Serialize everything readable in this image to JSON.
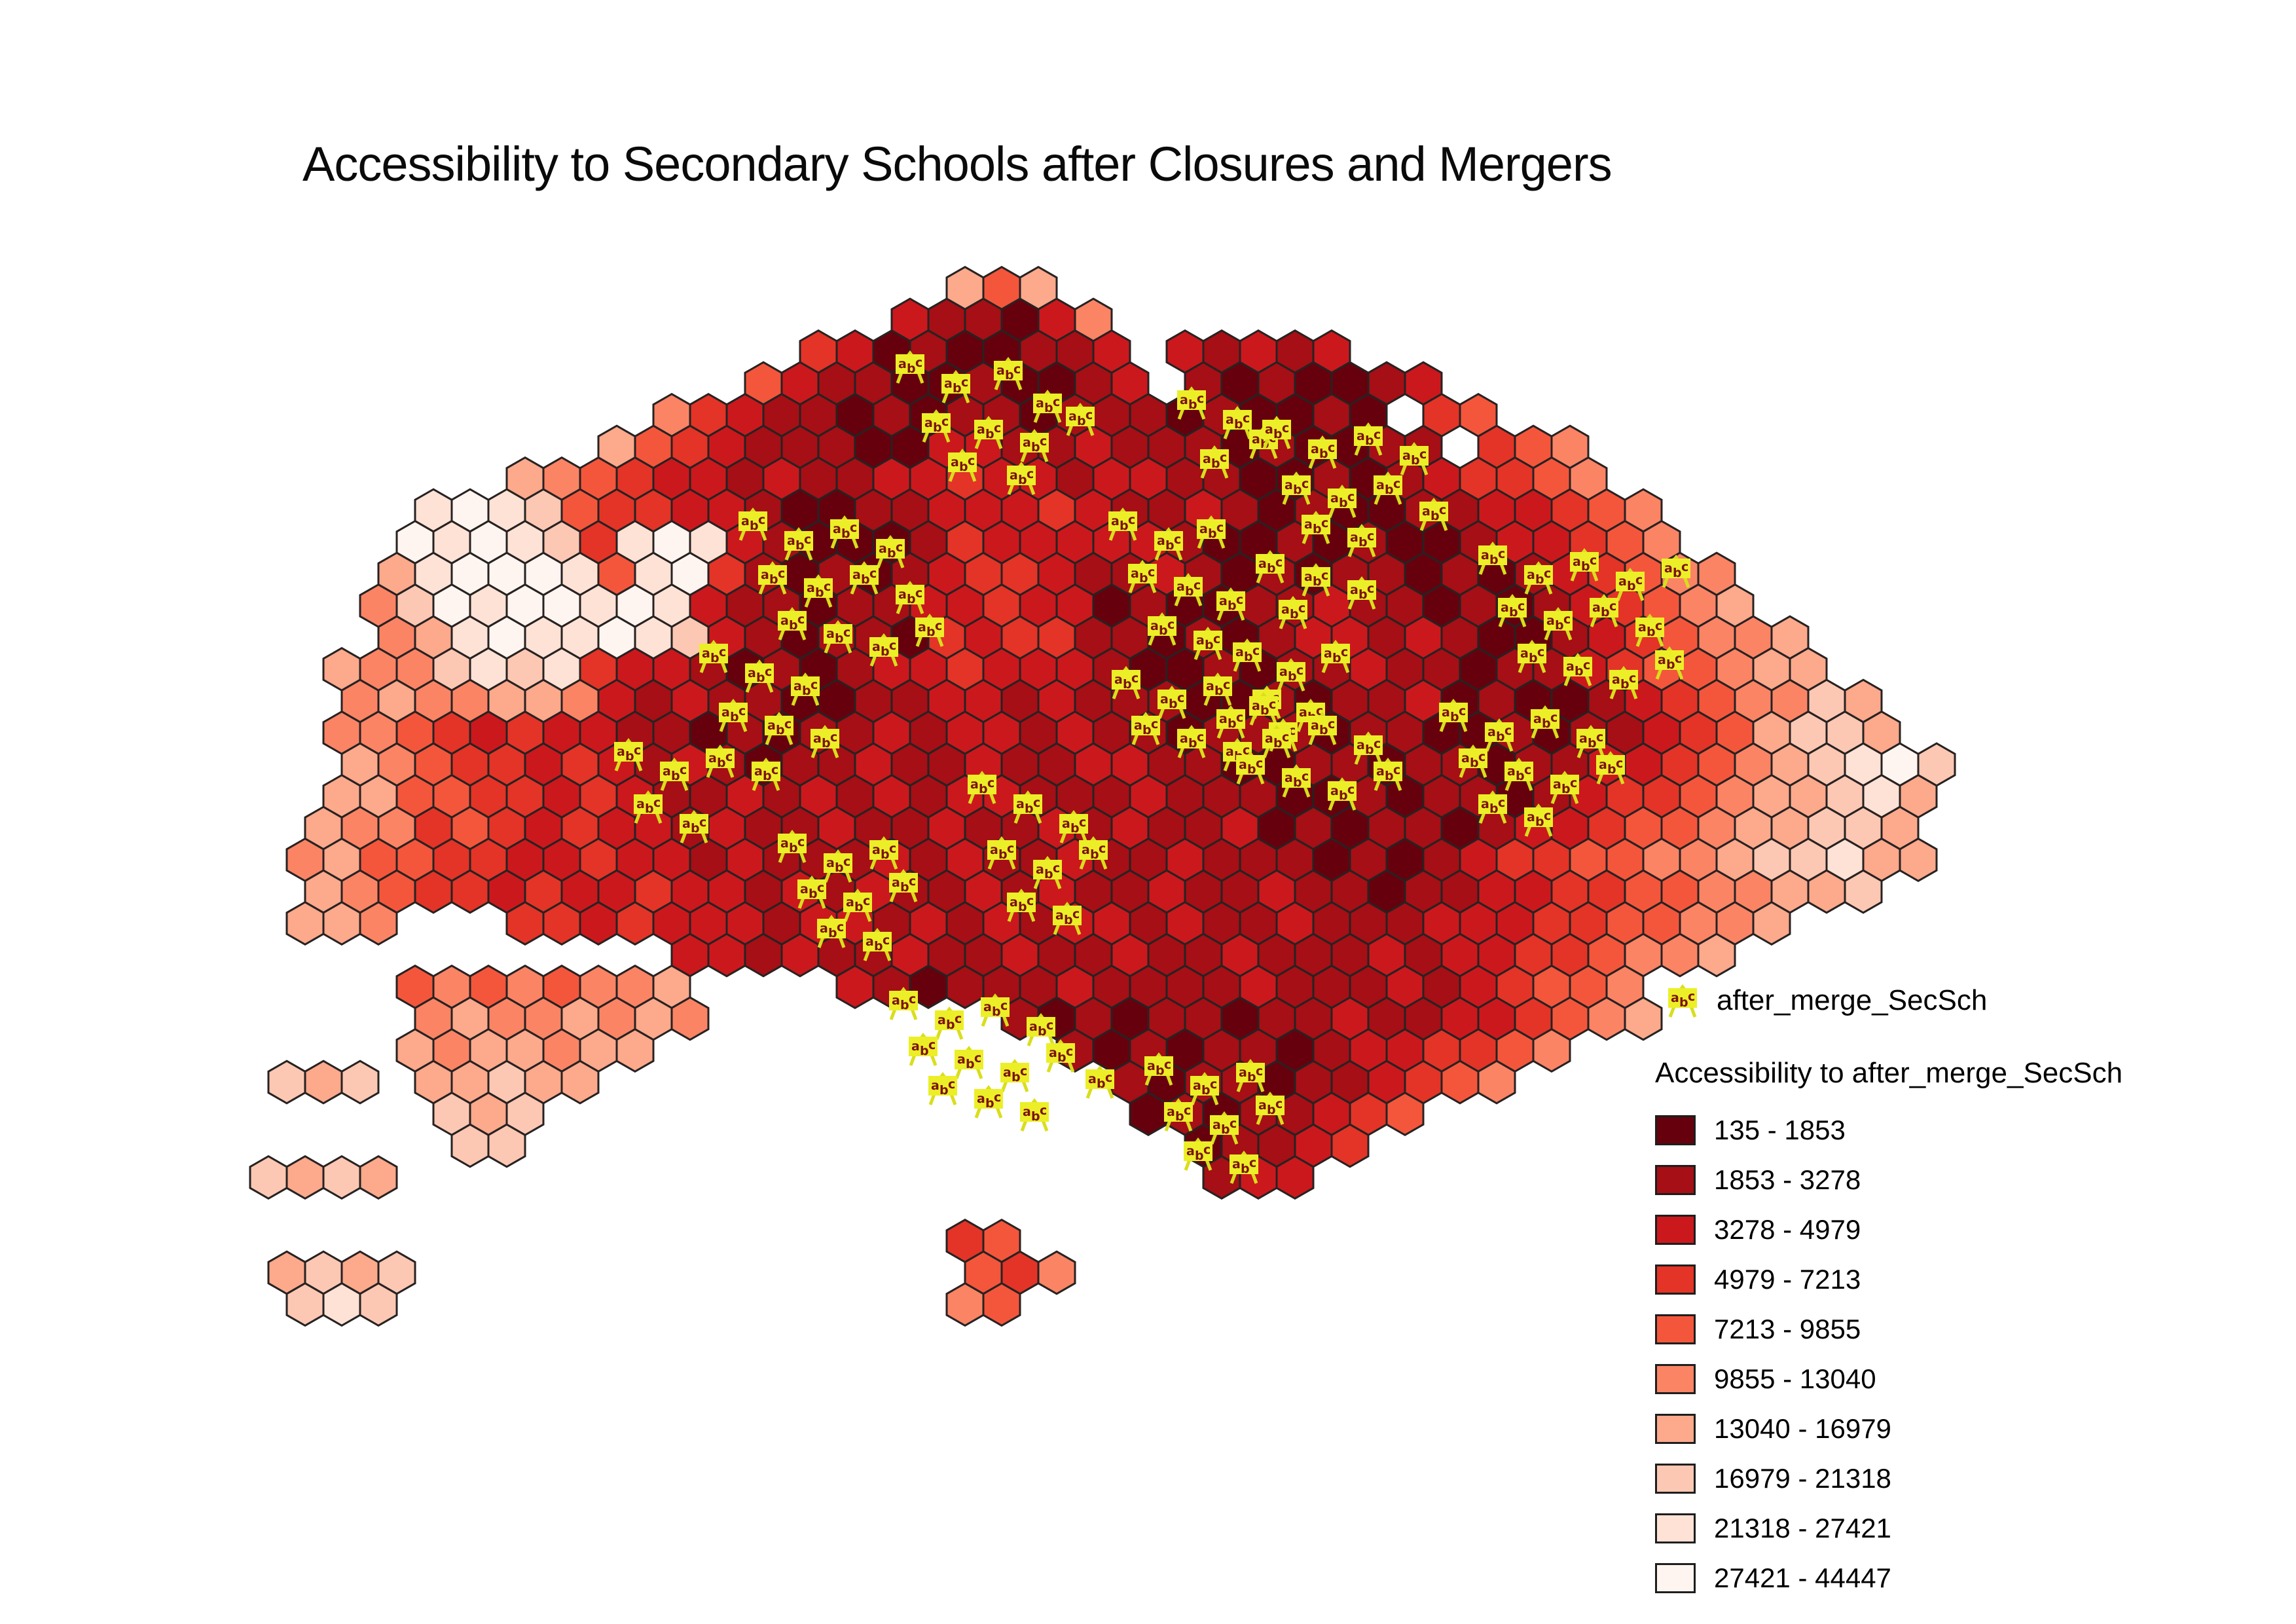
{
  "title": "Accessibility to Secondary Schools after Closures and Mergers",
  "legend": {
    "point_layer": {
      "label": "after_merge_SecSch",
      "marker_board_color": "#ecef27",
      "marker_leg_color": "#d9de1c",
      "marker_letter_color": "#7c120d"
    },
    "choropleth": {
      "heading": "Accessibility to after_merge_SecSch",
      "classes": [
        {
          "range": "135 - 1853",
          "color": "#67000d"
        },
        {
          "range": "1853 - 3278",
          "color": "#a50f15"
        },
        {
          "range": "3278 - 4979",
          "color": "#cb181d"
        },
        {
          "range": "4979 - 7213",
          "color": "#e33427"
        },
        {
          "range": "7213 - 9855",
          "color": "#f4563c"
        },
        {
          "range": "9855 - 13040",
          "color": "#fb8465"
        },
        {
          "range": "13040 - 16979",
          "color": "#fca98c"
        },
        {
          "range": "16979 - 21318",
          "color": "#fcc8b3"
        },
        {
          "range": "21318 - 27421",
          "color": "#fee2d5"
        },
        {
          "range": "27421 - 44447",
          "color": "#fff5f0"
        }
      ]
    }
  },
  "map": {
    "background": "#ffffff",
    "hex_outline": "#272222",
    "palette": [
      "#67000d",
      "#a50f15",
      "#cb181d",
      "#e33427",
      "#f4563c",
      "#fb8465",
      "#fca98c",
      "#fcc8b3",
      "#fee2d5",
      "#fff5f0"
    ],
    "grid": [
      "...................646........................",
      ".................211025.......................",
      "...............320100112.21212................",
      ".............42110010012.1010012..............",
      "...........53211010110111010010.34............",
      ".........64321110022112111010011.345..........",
      ".......654322121122322122110010123345.........",
      "....8987433221001122232112101001122345........",
      "....98987389821000132222210010100122345.......",
      "...6899984893101012332112101011010123455......",
      "...57989989821101122322010011211010123456.....",
      "...568988987210110323311010122121001234556....",
      "..65578783221010122322210010112110112344566...",
      "..565566521211001122121110010112010012345576..",
      "..5543232211010112122121101110110010112346776.",
      "..65433232121011211211221100110110112234567897",
      "..66443323211212121221112111001011012334566786",
      ".65534323221211211211212112010110122344566776.",
      ".564433223221211121211211211101012334455677866",
      ".6543323223221212112121121121101122334455667..",
      ".665...33232221221212122121121112223344556....",
      "...........22121121121121121112122334556......",
      "....45454556....2101112111121112123445........",
      "....56556565........101011011211223456........",
      "....6566566...........10101101223345..........",
      "767.66766..............10110112345............",
      ".....767................01011234..............",
      ".....77..................01123................",
      "7676......................122.................",
      "..............................................",
      "...................34.........................",
      "6767...............435........................",
      ".787...............54........................."
    ],
    "schools": [
      [
        1390,
        560
      ],
      [
        1460,
        590
      ],
      [
        1540,
        570
      ],
      [
        1600,
        620
      ],
      [
        1430,
        650
      ],
      [
        1510,
        660
      ],
      [
        1580,
        680
      ],
      [
        1650,
        640
      ],
      [
        1470,
        710
      ],
      [
        1560,
        730
      ],
      [
        1820,
        615
      ],
      [
        1890,
        645
      ],
      [
        1855,
        705
      ],
      [
        1930,
        675
      ],
      [
        1950,
        660
      ],
      [
        2020,
        690
      ],
      [
        2090,
        670
      ],
      [
        2160,
        700
      ],
      [
        1980,
        745
      ],
      [
        2050,
        765
      ],
      [
        2120,
        745
      ],
      [
        2190,
        785
      ],
      [
        2010,
        805
      ],
      [
        2080,
        825
      ],
      [
        1940,
        865
      ],
      [
        2010,
        885
      ],
      [
        2080,
        905
      ],
      [
        1975,
        935
      ],
      [
        1715,
        800
      ],
      [
        1785,
        830
      ],
      [
        1850,
        812
      ],
      [
        1745,
        880
      ],
      [
        1815,
        900
      ],
      [
        1880,
        922
      ],
      [
        1775,
        960
      ],
      [
        1845,
        982
      ],
      [
        1905,
        1000
      ],
      [
        1972,
        1030
      ],
      [
        2040,
        1002
      ],
      [
        1935,
        1072
      ],
      [
        2002,
        1092
      ],
      [
        1150,
        800
      ],
      [
        1220,
        830
      ],
      [
        1290,
        812
      ],
      [
        1360,
        842
      ],
      [
        1180,
        882
      ],
      [
        1250,
        902
      ],
      [
        1320,
        882
      ],
      [
        1390,
        912
      ],
      [
        1210,
        952
      ],
      [
        1280,
        972
      ],
      [
        1350,
        992
      ],
      [
        1420,
        962
      ],
      [
        1090,
        1002
      ],
      [
        1160,
        1032
      ],
      [
        1230,
        1052
      ],
      [
        1120,
        1092
      ],
      [
        1190,
        1112
      ],
      [
        1260,
        1132
      ],
      [
        1100,
        1162
      ],
      [
        1170,
        1182
      ],
      [
        960,
        1152
      ],
      [
        1030,
        1182
      ],
      [
        990,
        1232
      ],
      [
        1060,
        1262
      ],
      [
        1720,
        1042
      ],
      [
        1790,
        1072
      ],
      [
        1860,
        1052
      ],
      [
        1930,
        1082
      ],
      [
        1750,
        1112
      ],
      [
        1820,
        1132
      ],
      [
        1890,
        1152
      ],
      [
        1960,
        1122
      ],
      [
        2280,
        852
      ],
      [
        2350,
        882
      ],
      [
        2420,
        862
      ],
      [
        2490,
        892
      ],
      [
        2560,
        872
      ],
      [
        2310,
        932
      ],
      [
        2380,
        952
      ],
      [
        2450,
        932
      ],
      [
        2520,
        962
      ],
      [
        2340,
        1002
      ],
      [
        2410,
        1022
      ],
      [
        2480,
        1042
      ],
      [
        2550,
        1012
      ],
      [
        2220,
        1092
      ],
      [
        2290,
        1122
      ],
      [
        2360,
        1102
      ],
      [
        2430,
        1132
      ],
      [
        2250,
        1162
      ],
      [
        2320,
        1182
      ],
      [
        2390,
        1202
      ],
      [
        2460,
        1172
      ],
      [
        2280,
        1232
      ],
      [
        2350,
        1252
      ],
      [
        1880,
        1102
      ],
      [
        1950,
        1132
      ],
      [
        2020,
        1112
      ],
      [
        2090,
        1142
      ],
      [
        1910,
        1172
      ],
      [
        1980,
        1192
      ],
      [
        2050,
        1212
      ],
      [
        2120,
        1182
      ],
      [
        1500,
        1202
      ],
      [
        1570,
        1232
      ],
      [
        1640,
        1262
      ],
      [
        1530,
        1302
      ],
      [
        1600,
        1332
      ],
      [
        1670,
        1302
      ],
      [
        1560,
        1382
      ],
      [
        1630,
        1402
      ],
      [
        1210,
        1292
      ],
      [
        1280,
        1322
      ],
      [
        1350,
        1302
      ],
      [
        1240,
        1362
      ],
      [
        1310,
        1382
      ],
      [
        1380,
        1352
      ],
      [
        1270,
        1422
      ],
      [
        1340,
        1442
      ],
      [
        1380,
        1532
      ],
      [
        1450,
        1562
      ],
      [
        1520,
        1542
      ],
      [
        1590,
        1572
      ],
      [
        1410,
        1602
      ],
      [
        1480,
        1622
      ],
      [
        1550,
        1642
      ],
      [
        1620,
        1612
      ],
      [
        1440,
        1662
      ],
      [
        1510,
        1682
      ],
      [
        1580,
        1702
      ],
      [
        1680,
        1652
      ],
      [
        1770,
        1632
      ],
      [
        1840,
        1662
      ],
      [
        1910,
        1642
      ],
      [
        1800,
        1702
      ],
      [
        1870,
        1722
      ],
      [
        1940,
        1692
      ],
      [
        1830,
        1762
      ],
      [
        1900,
        1782
      ]
    ]
  }
}
